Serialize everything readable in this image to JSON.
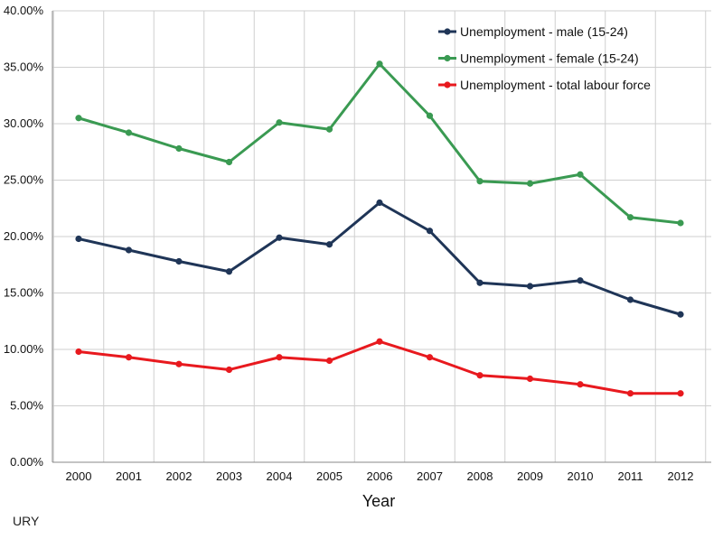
{
  "chart_data": {
    "type": "line",
    "title": "",
    "xlabel": "Year",
    "ylabel": "",
    "ylim": [
      0,
      40
    ],
    "y_ticks": [
      "0.00%",
      "5.00%",
      "10.00%",
      "15.00%",
      "20.00%",
      "25.00%",
      "30.00%",
      "35.00%",
      "40.00%"
    ],
    "categories": [
      "2000",
      "2001",
      "2002",
      "2003",
      "2004",
      "2005",
      "2006",
      "2007",
      "2008",
      "2009",
      "2010",
      "2011",
      "2012"
    ],
    "grid": true,
    "legend_position": "top-right",
    "series": [
      {
        "name": "Unemployment - male (15-24)",
        "color": "#1f3557",
        "values": [
          19.8,
          18.8,
          17.8,
          16.9,
          19.9,
          19.3,
          23.0,
          20.5,
          15.9,
          15.6,
          16.1,
          14.4,
          13.1
        ]
      },
      {
        "name": "Unemployment - female (15-24)",
        "color": "#3a9a52",
        "values": [
          30.5,
          29.2,
          27.8,
          26.6,
          30.1,
          29.5,
          35.3,
          30.7,
          24.9,
          24.7,
          25.5,
          21.7,
          21.2
        ]
      },
      {
        "name": "Unemployment - total labour force",
        "color": "#e8191e",
        "values": [
          9.8,
          9.3,
          8.7,
          8.2,
          9.3,
          9.0,
          10.7,
          9.3,
          7.7,
          7.4,
          6.9,
          6.1,
          6.1
        ]
      }
    ],
    "footnote": "URY"
  }
}
